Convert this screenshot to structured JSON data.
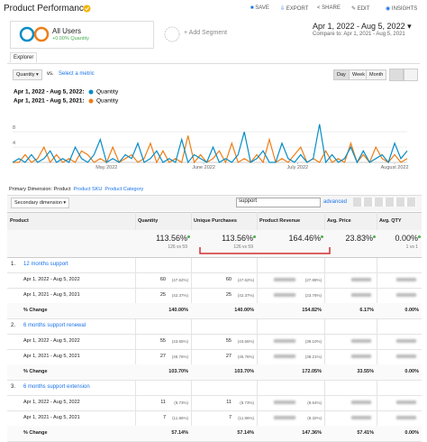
{
  "header": {
    "title": "Product Performance",
    "buttons": [
      "SAVE",
      "EXPORT",
      "SHARE",
      "EDIT",
      "INSIGHTS"
    ],
    "date_range": "Apr 1, 2022 - Aug 5, 2022",
    "compare_label": "Compare to:",
    "compare_range": "Apr 1, 2021 - Aug 5, 2021"
  },
  "segment": {
    "name": "All Users",
    "change": "+0.00% Quantity",
    "add": "+ Add Segment"
  },
  "tab": "Explorer",
  "controls": {
    "metric": "Quantity",
    "vs": "vs.",
    "select": "Select a metric",
    "periods": [
      "Day",
      "Week",
      "Month"
    ]
  },
  "chart_data": {
    "type": "line",
    "xlim": [
      0,
      63
    ],
    "xticks": [
      {
        "value": 15,
        "label": "May 2022"
      },
      {
        "value": 30.5,
        "label": "June 2022"
      },
      {
        "value": 45.5,
        "label": "July 2022"
      },
      {
        "value": 61,
        "label": "August 2022"
      }
    ],
    "ylim": [
      0,
      13
    ],
    "yticks": [
      4,
      8
    ],
    "grid": true,
    "series": [
      {
        "name": "Quantity",
        "period": "Apr 1, 2022 - Aug 5, 2022:",
        "color": "#058dc7",
        "values": [
          0,
          1,
          0,
          2,
          0,
          1,
          3,
          0,
          1,
          0,
          4,
          1,
          0,
          2,
          6,
          0,
          1,
          0,
          2,
          1,
          5,
          0,
          1,
          3,
          0,
          1,
          0,
          6,
          0,
          2,
          1,
          0,
          4,
          0,
          1,
          0,
          2,
          8,
          0,
          1,
          3,
          0,
          0,
          5,
          1,
          0,
          2,
          0,
          1,
          10,
          0,
          2,
          0,
          1,
          4,
          0,
          3,
          0,
          1,
          2,
          0,
          5,
          1,
          3
        ]
      },
      {
        "name": "Quantity",
        "period": "Apr 1, 2021 - Aug 5, 2021:",
        "color": "#ed7e17",
        "values": [
          0,
          0,
          2,
          0,
          1,
          4,
          0,
          2,
          0,
          1,
          0,
          3,
          2,
          0,
          1,
          0,
          4,
          0,
          1,
          2,
          0,
          1,
          5,
          0,
          3,
          0,
          1,
          0,
          7,
          0,
          2,
          0,
          1,
          3,
          0,
          5,
          0,
          1,
          0,
          2,
          0,
          6,
          0,
          1,
          0,
          2,
          4,
          0,
          1,
          0,
          3,
          0,
          1,
          0,
          5,
          0,
          2,
          0,
          4,
          1,
          0,
          2,
          0,
          1
        ]
      }
    ]
  },
  "dimensions": {
    "label": "Primary Dimension:",
    "items": [
      "Product",
      "Product SKU",
      "Product Category"
    ],
    "secondary": "Secondary dimension",
    "search": "support",
    "advanced": "advanced"
  },
  "table": {
    "headers": [
      "Product",
      "Quantity",
      "Unique Purchases",
      "Product Revenue",
      "Avg. Price",
      "Avg. QTY"
    ],
    "totals": {
      "quantity": "113.56%",
      "quantity_sub": "126 vs 59",
      "unique": "113.56%",
      "unique_sub": "126 vs 59",
      "revenue": "164.46%",
      "avg_price": "23.83%",
      "avg_qty": "0.00%",
      "avg_qty_sub": "1 vs 1"
    },
    "groups": [
      {
        "index": "1.",
        "name": "12 months support",
        "rows": [
          {
            "label": "Apr 1, 2022 - Aug 5, 2022",
            "quantity": "60",
            "quantity_pct": "(47.62%)",
            "unique": "60",
            "unique_pct": "(47.62%)",
            "revenue_pct": "(27.88%)"
          },
          {
            "label": "Apr 1, 2021 - Aug 5, 2021",
            "quantity": "25",
            "quantity_pct": "(42.37%)",
            "unique": "25",
            "unique_pct": "(42.37%)",
            "revenue_pct": "(23.78%)"
          },
          {
            "label": "% Change",
            "quantity": "140.00%",
            "unique": "140.00%",
            "revenue": "154.82%",
            "avg_price": "6.17%",
            "avg_qty": "0.00%"
          }
        ]
      },
      {
        "index": "2.",
        "name": "6 months support renewal",
        "rows": [
          {
            "label": "Apr 1, 2022 - Aug 5, 2022",
            "quantity": "55",
            "quantity_pct": "(43.65%)",
            "unique": "55",
            "unique_pct": "(43.65%)",
            "revenue_pct": "(39.10%)"
          },
          {
            "label": "Apr 1, 2021 - Aug 5, 2021",
            "quantity": "27",
            "quantity_pct": "(45.76%)",
            "unique": "27",
            "unique_pct": "(45.76%)",
            "revenue_pct": "(38.21%)"
          },
          {
            "label": "% Change",
            "quantity": "103.70%",
            "unique": "103.70%",
            "revenue": "172.05%",
            "avg_price": "33.55%",
            "avg_qty": "0.00%"
          }
        ]
      },
      {
        "index": "3.",
        "name": "6 months support extension",
        "rows": [
          {
            "label": "Apr 1, 2022 - Aug 5, 2022",
            "quantity": "11",
            "quantity_pct": "(8.73%)",
            "unique": "11",
            "unique_pct": "(8.73%)",
            "revenue_pct": "(8.64%)"
          },
          {
            "label": "Apr 1, 2021 - Aug 5, 2021",
            "quantity": "7",
            "quantity_pct": "(11.86%)",
            "unique": "7",
            "unique_pct": "(11.86%)",
            "revenue_pct": "(8.32%)"
          },
          {
            "label": "% Change",
            "quantity": "57.14%",
            "unique": "57.14%",
            "revenue": "147.36%",
            "avg_price": "57.41%",
            "avg_qty": "0.00%"
          }
        ]
      }
    ]
  }
}
